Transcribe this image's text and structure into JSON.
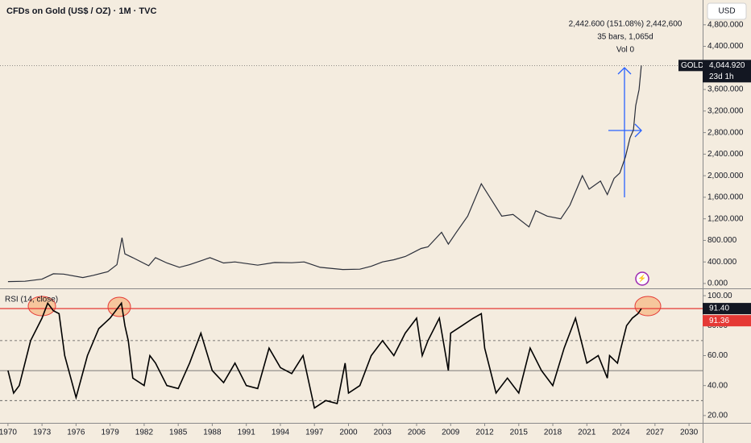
{
  "chart_data": [
    {
      "type": "line",
      "title": "CFDs on Gold (US$ / OZ) · 1M · TVC",
      "currency": "USD",
      "annotations": [
        "2,442.600 (151.08%) 2,442,600",
        "35 bars, 1,065d",
        "Vol 0"
      ],
      "symbol": "GOLD",
      "countdown": "23d 1h",
      "last_label": {
        "value": 4044.92,
        "label": "4,044.920"
      },
      "color": "#2a2e39",
      "x": [
        1970,
        1971.5,
        1973,
        1974,
        1974.9,
        1976.6,
        1977.5,
        1978.8,
        1979.6,
        1980.05,
        1980.3,
        1981,
        1982.4,
        1983,
        1984,
        1985.1,
        1986,
        1987.8,
        1989,
        1990,
        1992,
        1993.5,
        1995,
        1996.1,
        1997.5,
        1999.5,
        2001,
        2002,
        2003,
        2004,
        2005,
        2006.4,
        2007,
        2008.2,
        2008.8,
        2009.5,
        2010.5,
        2011.7,
        2012.3,
        2013.5,
        2014.5,
        2015.9,
        2016.5,
        2017.5,
        2018.7,
        2019.5,
        2020.6,
        2021.2,
        2022.2,
        2022.8,
        2023.4,
        2023.9,
        2024.4,
        2024.8,
        2025.1,
        2025.3,
        2025.6,
        2025.8
      ],
      "values": [
        35,
        42,
        80,
        180,
        175,
        110,
        150,
        220,
        350,
        850,
        550,
        480,
        330,
        480,
        380,
        300,
        350,
        480,
        380,
        400,
        340,
        390,
        385,
        400,
        300,
        260,
        265,
        320,
        400,
        440,
        500,
        650,
        680,
        950,
        730,
        950,
        1250,
        1850,
        1650,
        1250,
        1280,
        1050,
        1350,
        1250,
        1200,
        1450,
        2000,
        1750,
        1900,
        1650,
        1950,
        2050,
        2350,
        2700,
        2850,
        3300,
        3600,
        4044.92
      ],
      "xlim": [
        1969.3,
        2031.2
      ],
      "ylim": [
        -90,
        5260
      ],
      "yticks": [
        {
          "value": 4800,
          "label": "4,800.000"
        },
        {
          "value": 4400,
          "label": "4,400.000"
        },
        {
          "value": 3600,
          "label": "3,600.000"
        },
        {
          "value": 3200,
          "label": "3,200.000"
        },
        {
          "value": 2800,
          "label": "2,800.000"
        },
        {
          "value": 2400,
          "label": "2,400.000"
        },
        {
          "value": 2000,
          "label": "2,000.000"
        },
        {
          "value": 1600,
          "label": "1,600.000"
        },
        {
          "value": 1200,
          "label": "1,200.000"
        },
        {
          "value": 800,
          "label": "800.000"
        },
        {
          "value": 400,
          "label": "400.000"
        },
        {
          "value": 0,
          "label": "0.000"
        }
      ]
    },
    {
      "type": "line",
      "title": "RSI (14, close)",
      "color": "#000000",
      "level": {
        "value": 91.4,
        "label": "91.40"
      },
      "last_label": {
        "value": 91.36,
        "label": "91.36"
      },
      "x": [
        1970,
        1970.5,
        1971,
        1972,
        1973,
        1973.5,
        1974,
        1974.5,
        1975,
        1976,
        1977,
        1978,
        1979,
        1980,
        1980.3,
        1980.6,
        1981,
        1982,
        1982.5,
        1983,
        1984,
        1985,
        1986,
        1987,
        1988,
        1989,
        1990,
        1991,
        1992,
        1993,
        1994,
        1995,
        1996,
        1997,
        1998,
        1999,
        1999.7,
        2000,
        2001,
        2002,
        2003,
        2004,
        2005,
        2006,
        2006.5,
        2007,
        2008,
        2008.8,
        2009,
        2010,
        2011,
        2011.7,
        2012,
        2013,
        2014,
        2015,
        2016,
        2017,
        2018,
        2019,
        2020,
        2021,
        2022,
        2022.8,
        2023,
        2023.7,
        2024,
        2024.5,
        2025,
        2025.5,
        2025.8
      ],
      "values": [
        50,
        35,
        40,
        70,
        85,
        95,
        90,
        88,
        60,
        32,
        60,
        78,
        85,
        95,
        80,
        70,
        45,
        40,
        60,
        55,
        40,
        38,
        55,
        75,
        50,
        42,
        55,
        40,
        38,
        65,
        52,
        48,
        60,
        25,
        30,
        28,
        55,
        35,
        40,
        60,
        70,
        60,
        75,
        85,
        60,
        70,
        85,
        50,
        75,
        80,
        85,
        88,
        65,
        35,
        45,
        35,
        65,
        50,
        40,
        65,
        85,
        55,
        60,
        45,
        60,
        55,
        65,
        80,
        85,
        88,
        91.36
      ],
      "guides": [
        70,
        50,
        30
      ],
      "xlim": [
        1969.3,
        2031.2
      ],
      "ylim": [
        15.1,
        104.9
      ],
      "xticks": [
        1970,
        1973,
        1976,
        1979,
        1982,
        1985,
        1988,
        1991,
        1994,
        1997,
        2000,
        2003,
        2006,
        2009,
        2012,
        2015,
        2018,
        2021,
        2024,
        2027,
        2030
      ],
      "yticks": [
        {
          "value": 100,
          "label": "100.00"
        },
        {
          "value": 80,
          "label": "80.00"
        },
        {
          "value": 60,
          "label": "60.00"
        },
        {
          "value": 40,
          "label": "40.00"
        },
        {
          "value": 20,
          "label": "20.00"
        }
      ]
    }
  ]
}
